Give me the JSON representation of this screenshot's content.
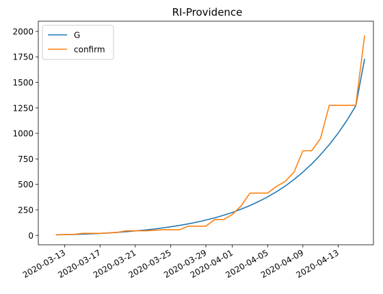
{
  "chart_data": {
    "type": "line",
    "title": "RI-Providence",
    "xlabel": "",
    "ylabel": "",
    "xlim": [
      "2020-03-10",
      "2020-04-17"
    ],
    "ylim": [
      -92,
      2100
    ],
    "x_tick_labels": [
      "2020-03-13",
      "2020-03-17",
      "2020-03-21",
      "2020-03-25",
      "2020-03-29",
      "2020-04-01",
      "2020-04-05",
      "2020-04-09",
      "2020-04-13"
    ],
    "y_tick_labels": [
      "0",
      "250",
      "500",
      "750",
      "1000",
      "1250",
      "1500",
      "1750",
      "2000"
    ],
    "y_ticks": [
      0,
      250,
      500,
      750,
      1000,
      1250,
      1500,
      1750,
      2000
    ],
    "legend_position": "upper-left",
    "grid": false,
    "x": [
      "2020-03-12",
      "2020-03-13",
      "2020-03-14",
      "2020-03-15",
      "2020-03-16",
      "2020-03-17",
      "2020-03-18",
      "2020-03-19",
      "2020-03-20",
      "2020-03-21",
      "2020-03-22",
      "2020-03-23",
      "2020-03-24",
      "2020-03-25",
      "2020-03-26",
      "2020-03-27",
      "2020-03-28",
      "2020-03-29",
      "2020-03-30",
      "2020-03-31",
      "2020-04-01",
      "2020-04-02",
      "2020-04-03",
      "2020-04-04",
      "2020-04-05",
      "2020-04-06",
      "2020-04-07",
      "2020-04-08",
      "2020-04-09",
      "2020-04-10",
      "2020-04-11",
      "2020-04-12",
      "2020-04-13",
      "2020-04-14",
      "2020-04-15",
      "2020-04-16"
    ],
    "series": [
      {
        "name": "G",
        "color": "#1f77b4",
        "values": [
          5,
          7,
          9,
          12,
          15,
          19,
          24,
          30,
          37,
          44,
          52,
          61,
          72,
          84,
          98,
          113,
          130,
          150,
          172,
          197,
          225,
          257,
          293,
          333,
          378,
          428,
          484,
          548,
          620,
          700,
          790,
          890,
          1002,
          1128,
          1270,
          1730
        ]
      },
      {
        "name": "confirm",
        "color": "#ff7f0e",
        "values": [
          6,
          8,
          10,
          20,
          20,
          20,
          25,
          30,
          45,
          45,
          45,
          48,
          55,
          55,
          55,
          90,
          90,
          90,
          155,
          155,
          205,
          290,
          415,
          415,
          415,
          480,
          530,
          620,
          830,
          830,
          950,
          1275,
          1275,
          1275,
          1275,
          1960
        ]
      }
    ]
  }
}
